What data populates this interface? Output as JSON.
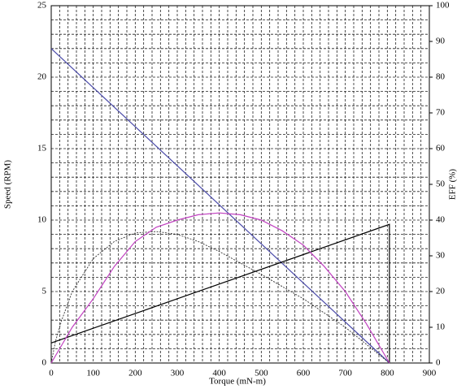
{
  "chart_data": {
    "type": "line",
    "x_label": "Torque (mN-m)",
    "y_label": "Speed (RPM)",
    "y2_label": "EFF (%)",
    "xlim": [
      0,
      900
    ],
    "xticks": [
      0,
      100,
      200,
      300,
      400,
      500,
      600,
      700,
      800,
      900
    ],
    "ylim": [
      0,
      25
    ],
    "yticks": [
      0,
      5,
      10,
      15,
      20,
      25
    ],
    "y2lim": [
      0,
      100
    ],
    "y2ticks": [
      0,
      10,
      20,
      30,
      40,
      50,
      60,
      70,
      80,
      90,
      100
    ],
    "xgrid": [
      20,
      40,
      60,
      80,
      120,
      140,
      160,
      180,
      220,
      240,
      260,
      280,
      320,
      340,
      360,
      380,
      420,
      440,
      460,
      480,
      520,
      540,
      560,
      580,
      620,
      640,
      660,
      680,
      720,
      740,
      760,
      780,
      820,
      840,
      860,
      880
    ],
    "ygrid": [
      1,
      2,
      3,
      4,
      6,
      7,
      8,
      9,
      11,
      12,
      13,
      14,
      16,
      17,
      18,
      19,
      21,
      22,
      23,
      24
    ],
    "grid": true,
    "series": [
      {
        "color": "#4a4aa8",
        "dash": false,
        "x": [
          0,
          805
        ],
        "values": [
          22,
          0
        ]
      },
      {
        "color": "#000000",
        "dash": false,
        "x": [
          0,
          805,
          805
        ],
        "values": [
          1.4,
          9.7,
          0
        ]
      },
      {
        "color": "#333333",
        "dash": true,
        "x": [
          0,
          10,
          25,
          50,
          100,
          150,
          200,
          250,
          300,
          350,
          400,
          450,
          500,
          600,
          700,
          805
        ],
        "values": [
          0,
          1.5,
          3,
          5,
          7.3,
          8.5,
          9.1,
          9.2,
          9.0,
          8.5,
          7.8,
          7.0,
          6.2,
          4.5,
          2.5,
          0
        ]
      },
      {
        "color": "#c040c0",
        "dash": false,
        "axis": "y2",
        "x": [
          0,
          25,
          50,
          100,
          150,
          200,
          250,
          300,
          350,
          400,
          450,
          500,
          550,
          600,
          650,
          700,
          750,
          805
        ],
        "values": [
          0,
          5,
          10,
          18,
          27,
          34,
          38,
          40,
          41.5,
          42,
          41.5,
          40,
          37,
          33,
          27,
          20,
          11,
          0
        ]
      }
    ]
  }
}
